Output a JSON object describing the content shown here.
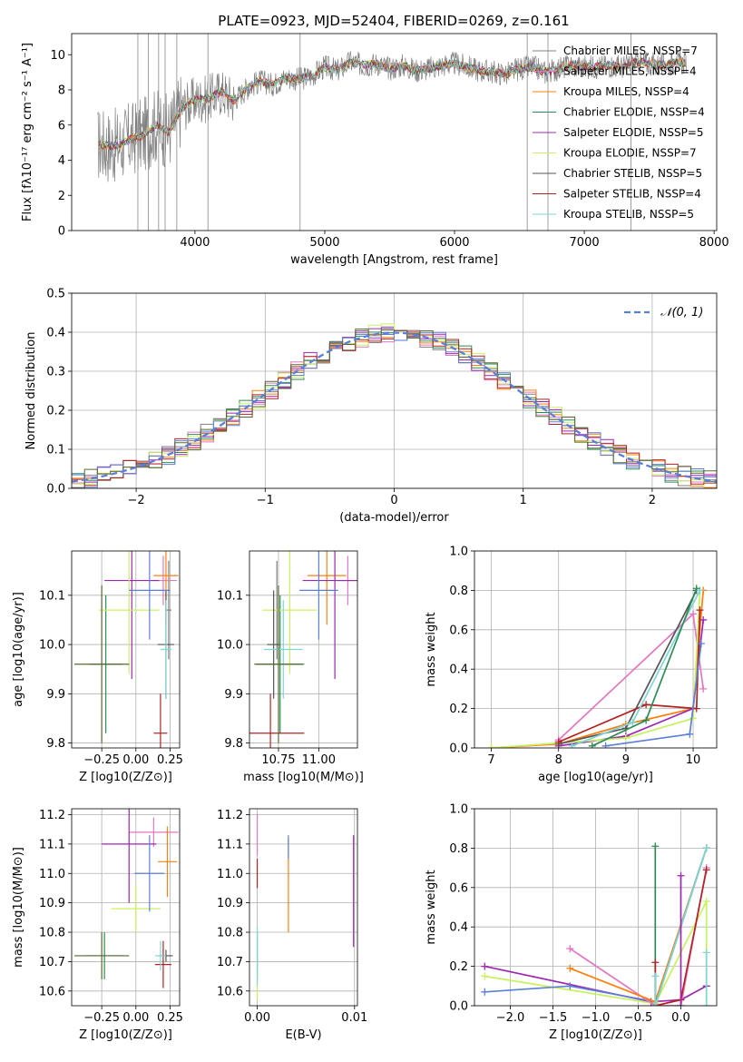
{
  "figure_title": "PLATE=0923, MJD=52404, FIBERID=0269, z=0.161",
  "colors": {
    "Chabrier MILES": "#7f7f7f",
    "Salpeter MILES": "#e377c2",
    "Kroupa MILES": "#ff7f0e",
    "Chabrier ELODIE": "#2e8b57",
    "Salpeter ELODIE": "#9c27b0",
    "Kroupa ELODIE": "#c8f060",
    "Chabrier STELIB": "#555555",
    "Salpeter STELIB": "#b22222",
    "Kroupa STELIB": "#7fd6d6",
    "normal": "#5b7fd6",
    "blue": "#5b7fd6",
    "olive": "#556b2f",
    "pink": "#e377c2"
  },
  "chart_data": [
    {
      "id": "spectrum",
      "type": "line",
      "title": "PLATE=0923, MJD=52404, FIBERID=0269, z=0.161",
      "xlabel": "wavelength [Angstrom, rest frame]",
      "ylabel": "Flux [fλ10⁻¹⁷ erg cm⁻² s⁻¹ A⁻¹]",
      "xlim": [
        3050,
        8020
      ],
      "ylim": [
        0,
        11.2
      ],
      "xticks": [
        4000,
        5000,
        6000,
        7000,
        8000
      ],
      "yticks": [
        0,
        2,
        4,
        6,
        8,
        10
      ],
      "legend_placement": "upper-right",
      "grid": false,
      "spectrum_x": [
        3250,
        3400,
        3500,
        3600,
        3700,
        3800,
        3900,
        4000,
        4100,
        4200,
        4300,
        4400,
        4500,
        4600,
        4700,
        4800,
        4900,
        5000,
        5100,
        5200,
        5300,
        5400,
        5500,
        5600,
        5700,
        5800,
        5900,
        6000,
        6100,
        6200,
        6300,
        6400,
        6500,
        6600,
        6700,
        6800,
        6900,
        7000,
        7100,
        7200,
        7300,
        7400,
        7500,
        7600,
        7700,
        7800
      ],
      "spectrum_y": [
        4.9,
        4.8,
        5.2,
        5.4,
        6.0,
        5.6,
        7.0,
        7.4,
        7.5,
        7.9,
        7.4,
        8.1,
        8.5,
        8.3,
        8.7,
        8.6,
        8.8,
        9.3,
        9.1,
        9.6,
        9.4,
        9.5,
        9.2,
        9.4,
        9.1,
        9.2,
        9.4,
        9.5,
        9.3,
        9.1,
        9.0,
        8.9,
        9.2,
        9.3,
        9.0,
        9.2,
        9.4,
        9.3,
        9.3,
        9.4,
        9.3,
        9.6,
        9.5,
        9.4,
        9.6,
        9.5
      ],
      "series": [
        {
          "name": "Chabrier MILES, NSSP=7"
        },
        {
          "name": "Salpeter MILES, NSSP=4"
        },
        {
          "name": "Kroupa MILES, NSSP=4"
        },
        {
          "name": "Chabrier ELODIE, NSSP=4"
        },
        {
          "name": "Salpeter ELODIE, NSSP=5"
        },
        {
          "name": "Kroupa ELODIE, NSSP=7"
        },
        {
          "name": "Chabrier STELIB, NSSP=5"
        },
        {
          "name": "Salpeter STELIB, NSSP=4"
        },
        {
          "name": "Kroupa STELIB, NSSP=5"
        }
      ]
    },
    {
      "id": "residuals",
      "type": "line",
      "xlabel": "(data-model)/error",
      "ylabel": "Normed distribution",
      "xlim": [
        -2.5,
        2.5
      ],
      "ylim": [
        0,
        0.5
      ],
      "xticks": [
        -2,
        -1,
        0,
        1,
        2
      ],
      "yticks": [
        0.0,
        0.1,
        0.2,
        0.3,
        0.4,
        0.5
      ],
      "grid": true,
      "legend_placement": "upper-right",
      "reference_curve": {
        "name": "𝒩(0, 1)",
        "mu": 0,
        "sigma": 1
      }
    },
    {
      "id": "age_vs_Z",
      "type": "scatter",
      "xlabel": "Z [log10(Z/Z⊙)]",
      "ylabel": "age  [log10(age/yr)]",
      "xlim": [
        -0.47,
        0.32
      ],
      "ylim": [
        9.79,
        10.19
      ],
      "xticks": [
        -0.25,
        0.0,
        0.25
      ],
      "xtick_labels": [
        "−0.25",
        "0.00",
        "0.25"
      ],
      "yticks": [
        9.8,
        9.9,
        10.0,
        10.1
      ],
      "grid": true,
      "points": [
        {
          "series": "Chabrier MILES",
          "x": 0.24,
          "y": 10.07,
          "xerr": 0.02,
          "yerr": 0.1
        },
        {
          "series": "Salpeter MILES",
          "x": 0.2,
          "y": 10.13,
          "xerr": 0.1,
          "yerr": 0.05
        },
        {
          "series": "Kroupa MILES",
          "x": 0.22,
          "y": 10.14,
          "xerr": 0.09,
          "yerr": 0.1
        },
        {
          "series": "Chabrier ELODIE",
          "x": -0.22,
          "y": 9.96,
          "xerr": 0.12,
          "yerr": 0.14
        },
        {
          "series": "Salpeter ELODIE",
          "x": -0.03,
          "y": 10.13,
          "xerr": 0.2,
          "yerr": 0.2
        },
        {
          "series": "Kroupa ELODIE",
          "x": -0.05,
          "y": 10.07,
          "xerr": 0.22,
          "yerr": 0.13
        },
        {
          "series": "Chabrier STELIB",
          "x": 0.22,
          "y": 10.0,
          "xerr": 0.06,
          "yerr": 0.11
        },
        {
          "series": "Salpeter STELIB",
          "x": 0.18,
          "y": 9.82,
          "xerr": 0.05,
          "yerr": 0.08
        },
        {
          "series": "Kroupa STELIB",
          "x": 0.22,
          "y": 9.99,
          "xerr": 0.04,
          "yerr": 0.1
        },
        {
          "series": "blue",
          "x": 0.1,
          "y": 10.11,
          "xerr": 0.15,
          "yerr": 0.1
        },
        {
          "series": "olive",
          "x": -0.25,
          "y": 9.96,
          "xerr": 0.2,
          "yerr": 0.16
        }
      ]
    },
    {
      "id": "age_vs_mass",
      "type": "scatter",
      "xlabel": "mass [log10(M/M⊙)]",
      "ylabel": "",
      "xlim": [
        10.57,
        11.24
      ],
      "ylim": [
        9.79,
        10.19
      ],
      "xticks": [
        10.75,
        11.0
      ],
      "xtick_labels": [
        "10.75",
        "11.00"
      ],
      "yticks": [
        9.8,
        9.9,
        10.0,
        10.1
      ],
      "grid": true,
      "points": [
        {
          "series": "Chabrier MILES",
          "x": 10.74,
          "y": 10.07,
          "xerr": 0.02,
          "yerr": 0.1
        },
        {
          "series": "Salpeter MILES",
          "x": 11.18,
          "y": 10.13,
          "xerr": 0.07,
          "yerr": 0.05
        },
        {
          "series": "Kroupa MILES",
          "x": 11.05,
          "y": 10.14,
          "xerr": 0.12,
          "yerr": 0.1
        },
        {
          "series": "Chabrier ELODIE",
          "x": 10.76,
          "y": 9.96,
          "xerr": 0.15,
          "yerr": 0.14
        },
        {
          "series": "Salpeter ELODIE",
          "x": 11.1,
          "y": 10.13,
          "xerr": 0.2,
          "yerr": 0.2
        },
        {
          "series": "Kroupa ELODIE",
          "x": 10.82,
          "y": 10.07,
          "xerr": 0.17,
          "yerr": 0.13
        },
        {
          "series": "Chabrier STELIB",
          "x": 10.72,
          "y": 10.0,
          "xerr": 0.04,
          "yerr": 0.11
        },
        {
          "series": "Salpeter STELIB",
          "x": 10.7,
          "y": 9.82,
          "xerr": 0.21,
          "yerr": 0.08
        },
        {
          "series": "Kroupa STELIB",
          "x": 10.78,
          "y": 9.99,
          "xerr": 0.12,
          "yerr": 0.1
        },
        {
          "series": "blue",
          "x": 11.0,
          "y": 10.11,
          "xerr": 0.12,
          "yerr": 0.1
        },
        {
          "series": "olive",
          "x": 10.75,
          "y": 9.96,
          "xerr": 0.15,
          "yerr": 0.16
        }
      ]
    },
    {
      "id": "mass_weight_vs_age",
      "type": "line",
      "xlabel": "age  [log10(age/yr)]",
      "ylabel": "mass weight",
      "xlim": [
        6.75,
        10.35
      ],
      "ylim": [
        0,
        1.0
      ],
      "xticks": [
        7,
        8,
        9,
        10
      ],
      "yticks": [
        0.0,
        0.2,
        0.4,
        0.6,
        0.8,
        1.0
      ],
      "grid": true,
      "series": [
        {
          "series": "Salpeter MILES",
          "x": [
            8.0,
            10.0,
            10.15
          ],
          "y": [
            0.04,
            0.68,
            0.3
          ]
        },
        {
          "series": "Kroupa MILES",
          "x": [
            7.0,
            8.0,
            9.0,
            10.0,
            10.15
          ],
          "y": [
            0.0,
            0.02,
            0.12,
            0.2,
            0.8
          ]
        },
        {
          "series": "Salpeter ELODIE",
          "x": [
            8.0,
            9.0,
            10.0,
            10.15
          ],
          "y": [
            0.01,
            0.06,
            0.2,
            0.65
          ]
        },
        {
          "series": "Kroupa ELODIE",
          "x": [
            7.0,
            9.0,
            10.0,
            10.1
          ],
          "y": [
            0.0,
            0.05,
            0.15,
            0.8
          ]
        },
        {
          "series": "Chabrier STELIB",
          "x": [
            8.0,
            9.0,
            10.05
          ],
          "y": [
            0.02,
            0.1,
            0.8
          ]
        },
        {
          "series": "Salpeter STELIB",
          "x": [
            8.0,
            9.3,
            10.05,
            10.1
          ],
          "y": [
            0.03,
            0.22,
            0.2,
            0.7
          ]
        },
        {
          "series": "Kroupa STELIB",
          "x": [
            8.2,
            9.1,
            10.1
          ],
          "y": [
            0.01,
            0.13,
            0.8
          ]
        },
        {
          "series": "Chabrier ELODIE",
          "x": [
            8.5,
            9.3,
            10.05
          ],
          "y": [
            0.01,
            0.14,
            0.81
          ]
        },
        {
          "series": "blue",
          "x": [
            8.7,
            9.95,
            10.12
          ],
          "y": [
            0.01,
            0.07,
            0.53
          ]
        }
      ]
    },
    {
      "id": "mass_vs_Z",
      "type": "scatter",
      "xlabel": "Z [log10(Z/Z⊙)]",
      "ylabel": "mass [log10(M/M⊙)]",
      "xlim": [
        -0.47,
        0.32
      ],
      "ylim": [
        10.55,
        11.22
      ],
      "xticks": [
        -0.25,
        0.0,
        0.25
      ],
      "xtick_labels": [
        "−0.25",
        "0.00",
        "0.25"
      ],
      "yticks": [
        10.6,
        10.7,
        10.8,
        10.9,
        11.0,
        11.1,
        11.2
      ],
      "grid": true,
      "points": [
        {
          "series": "Salpeter MILES",
          "x": 0.13,
          "y": 11.14,
          "xerr": 0.18,
          "yerr": 0.05
        },
        {
          "series": "Kroupa MILES",
          "x": 0.23,
          "y": 11.04,
          "xerr": 0.07,
          "yerr": 0.12
        },
        {
          "series": "Chabrier ELODIE",
          "x": -0.23,
          "y": 10.72,
          "xerr": 0.14,
          "yerr": 0.08
        },
        {
          "series": "Salpeter ELODIE",
          "x": -0.05,
          "y": 11.1,
          "xerr": 0.2,
          "yerr": 0.2
        },
        {
          "series": "Kroupa ELODIE",
          "x": 0.0,
          "y": 10.88,
          "xerr": 0.18,
          "yerr": 0.08
        },
        {
          "series": "Chabrier STELIB",
          "x": 0.22,
          "y": 10.72,
          "xerr": 0.05,
          "yerr": 0.02
        },
        {
          "series": "Salpeter STELIB",
          "x": 0.2,
          "y": 10.69,
          "xerr": 0.06,
          "yerr": 0.08
        },
        {
          "series": "Kroupa STELIB",
          "x": 0.18,
          "y": 10.72,
          "xerr": 0.04,
          "yerr": 0.05
        },
        {
          "series": "blue",
          "x": 0.1,
          "y": 11.0,
          "xerr": 0.11,
          "yerr": 0.13
        },
        {
          "series": "olive",
          "x": -0.25,
          "y": 10.72,
          "xerr": 0.2,
          "yerr": 0.08
        }
      ]
    },
    {
      "id": "mass_vs_EBV",
      "type": "scatter",
      "xlabel": "E(B-V)",
      "ylabel": "",
      "xlim": [
        -0.0008,
        0.0103
      ],
      "ylim": [
        10.55,
        11.22
      ],
      "xticks": [
        0.0,
        0.01
      ],
      "xtick_labels": [
        "0.00",
        "0.01"
      ],
      "yticks": [
        10.6,
        10.7,
        10.8,
        10.9,
        11.0,
        11.1,
        11.2
      ],
      "grid": true,
      "points": [
        {
          "series": "Salpeter MILES",
          "x": 0.0,
          "y": 11.13,
          "xerr": 0.0,
          "yerr": 0.07
        },
        {
          "series": "Kroupa MILES",
          "x": 0.0032,
          "y": 10.96,
          "xerr": 0.0,
          "yerr": 0.16
        },
        {
          "series": "Chabrier ELODIE",
          "x": 0.0,
          "y": 10.72,
          "xerr": 0.0,
          "yerr": 0.08
        },
        {
          "series": "Salpeter ELODIE",
          "x": 0.0099,
          "y": 10.94,
          "xerr": 0.0,
          "yerr": 0.19
        },
        {
          "series": "Kroupa ELODIE",
          "x": 0.0,
          "y": 10.62,
          "xerr": 0.0,
          "yerr": 0.05
        },
        {
          "series": "Salpeter STELIB",
          "x": 0.0,
          "y": 11.0,
          "xerr": 0.0,
          "yerr": 0.05
        },
        {
          "series": "Kroupa STELIB",
          "x": 0.0,
          "y": 10.72,
          "xerr": 0.0,
          "yerr": 0.1
        },
        {
          "series": "blue",
          "x": 0.0032,
          "y": 11.09,
          "xerr": 0.0,
          "yerr": 0.04
        }
      ]
    },
    {
      "id": "mass_weight_vs_Z",
      "type": "line",
      "xlabel": "Z [log10(Z/Z⊙)]",
      "ylabel": "mass weight",
      "xlim": [
        -2.42,
        0.42
      ],
      "ylim": [
        0,
        1.0
      ],
      "xticks": [
        -2.0,
        -1.5,
        -1.0,
        -0.5,
        0.0
      ],
      "xtick_labels": [
        "−2.0",
        "−1.5",
        "−1.0",
        "−0.5",
        "0.0"
      ],
      "yticks": [
        0.0,
        0.2,
        0.4,
        0.6,
        0.8,
        1.0
      ],
      "grid": true,
      "series": [
        {
          "series": "Salpeter ELODIE",
          "x": [
            -2.3,
            -0.35,
            0.0,
            0.3
          ],
          "y": [
            0.2,
            0.02,
            0.03,
            0.1
          ]
        },
        {
          "series": "Kroupa ELODIE",
          "x": [
            -2.3,
            -0.3,
            0.3,
            0.3
          ],
          "y": [
            0.15,
            0.01,
            0.53,
            0.0
          ]
        },
        {
          "series": "blue",
          "x": [
            -2.3,
            -1.3,
            -0.3,
            0.3
          ],
          "y": [
            0.07,
            0.1,
            0.02,
            0.8
          ]
        },
        {
          "series": "Salpeter MILES",
          "x": [
            -1.3,
            -0.3,
            0.0,
            0.3
          ],
          "y": [
            0.29,
            0.0,
            0.0,
            0.7
          ]
        },
        {
          "series": "Kroupa MILES",
          "x": [
            -1.3,
            -0.3,
            0.3
          ],
          "y": [
            0.19,
            0.02,
            0.8
          ]
        },
        {
          "series": "Chabrier ELODIE",
          "x": [
            -0.3,
            -0.3,
            0.3
          ],
          "y": [
            0.81,
            0.0,
            0.8
          ]
        },
        {
          "series": "Salpeter STELIB",
          "x": [
            -0.3,
            -0.3,
            0.0,
            0.3
          ],
          "y": [
            0.22,
            0.0,
            0.03,
            0.69
          ]
        },
        {
          "series": "Kroupa STELIB",
          "x": [
            -0.3,
            -0.3,
            0.3
          ],
          "y": [
            0.15,
            0.0,
            0.8
          ]
        },
        {
          "series": "Salpeter ELODIE",
          "x": [
            0.0,
            0.0
          ],
          "y": [
            0.66,
            0.0
          ]
        },
        {
          "series": "Kroupa STELIB",
          "x": [
            0.3,
            0.3
          ],
          "y": [
            0.27,
            0.0
          ]
        }
      ]
    }
  ]
}
